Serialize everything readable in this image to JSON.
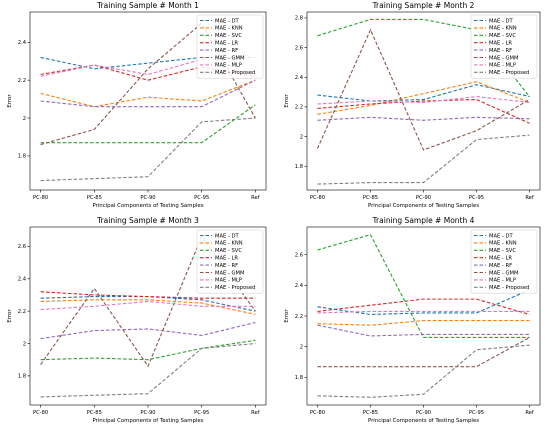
{
  "chart_data": [
    {
      "type": "line",
      "title": "Training Sample # Month 1",
      "xlabel": "Principal Components of Testing Samples",
      "ylabel": "Error",
      "categories": [
        "PC-80",
        "PC-85",
        "PC-90",
        "PC-95",
        "Ref"
      ],
      "ylim": [
        1.62,
        2.56
      ],
      "yticks": [
        1.8,
        2.0,
        2.2,
        2.4
      ],
      "grid": false,
      "legend": "top-right",
      "series": [
        {
          "name": "MAE - DT",
          "color": "#1f77b4",
          "values": [
            2.32,
            2.26,
            2.29,
            2.32,
            2.32
          ]
        },
        {
          "name": "MAE - KNN",
          "color": "#ff7f0e",
          "values": [
            2.13,
            2.06,
            2.11,
            2.09,
            2.2
          ]
        },
        {
          "name": "MAE - SVC",
          "color": "#2ca02c",
          "values": [
            1.87,
            1.87,
            1.87,
            1.87,
            2.07
          ]
        },
        {
          "name": "MAE - LR",
          "color": "#d62728",
          "values": [
            2.23,
            2.28,
            2.2,
            2.27,
            2.22
          ]
        },
        {
          "name": "MAE - RF",
          "color": "#9467bd",
          "values": [
            2.09,
            2.06,
            2.06,
            2.06,
            2.2
          ]
        },
        {
          "name": "MAE - GMM",
          "color": "#8c564b",
          "values": [
            1.86,
            1.94,
            2.26,
            2.5,
            2.0
          ]
        },
        {
          "name": "MAE - MLP",
          "color": "#e377c2",
          "values": [
            2.22,
            2.28,
            2.23,
            2.31,
            2.22
          ]
        },
        {
          "name": "MAE - Proposed",
          "color": "#7f7f7f",
          "values": [
            1.67,
            1.68,
            1.69,
            1.98,
            2.0
          ]
        }
      ]
    },
    {
      "type": "line",
      "title": "Training Sample # Month 2",
      "xlabel": "Principal Components of Testing Samples",
      "ylabel": "Error",
      "categories": [
        "PC-80",
        "PC-85",
        "PC-90",
        "PC-95",
        "Ref"
      ],
      "ylim": [
        1.64,
        2.84
      ],
      "yticks": [
        1.8,
        2.0,
        2.2,
        2.4,
        2.6,
        2.8
      ],
      "grid": false,
      "legend": "top-right",
      "series": [
        {
          "name": "MAE - DT",
          "color": "#1f77b4",
          "values": [
            2.28,
            2.24,
            2.25,
            2.35,
            2.27
          ]
        },
        {
          "name": "MAE - KNN",
          "color": "#ff7f0e",
          "values": [
            2.15,
            2.21,
            2.29,
            2.37,
            2.23
          ]
        },
        {
          "name": "MAE - SVC",
          "color": "#2ca02c",
          "values": [
            2.68,
            2.79,
            2.79,
            2.72,
            2.27
          ]
        },
        {
          "name": "MAE - LR",
          "color": "#d62728",
          "values": [
            2.19,
            2.22,
            2.24,
            2.25,
            2.09
          ]
        },
        {
          "name": "MAE - RF",
          "color": "#9467bd",
          "values": [
            2.11,
            2.13,
            2.11,
            2.13,
            2.12
          ]
        },
        {
          "name": "MAE - GMM",
          "color": "#8c564b",
          "values": [
            1.92,
            2.72,
            1.91,
            2.04,
            2.25
          ]
        },
        {
          "name": "MAE - MLP",
          "color": "#e377c2",
          "values": [
            2.22,
            2.24,
            2.23,
            2.27,
            2.23
          ]
        },
        {
          "name": "MAE - Proposed",
          "color": "#7f7f7f",
          "values": [
            1.68,
            1.69,
            1.69,
            1.98,
            2.01
          ]
        }
      ]
    },
    {
      "type": "line",
      "title": "Training Sample # Month 3",
      "xlabel": "Principal Components of Testing Samples",
      "ylabel": "Error",
      "categories": [
        "PC-80",
        "PC-85",
        "PC-90",
        "PC-95",
        "Ref"
      ],
      "ylim": [
        1.62,
        2.72
      ],
      "yticks": [
        1.8,
        2.0,
        2.2,
        2.4,
        2.6
      ],
      "grid": false,
      "legend": "top-right",
      "series": [
        {
          "name": "MAE - DT",
          "color": "#1f77b4",
          "values": [
            2.28,
            2.29,
            2.29,
            2.27,
            2.2
          ]
        },
        {
          "name": "MAE - KNN",
          "color": "#ff7f0e",
          "values": [
            2.26,
            2.27,
            2.27,
            2.25,
            2.18
          ]
        },
        {
          "name": "MAE - SVC",
          "color": "#2ca02c",
          "values": [
            1.9,
            1.91,
            1.9,
            1.97,
            2.02
          ]
        },
        {
          "name": "MAE - LR",
          "color": "#d62728",
          "values": [
            2.32,
            2.3,
            2.29,
            2.28,
            2.28
          ]
        },
        {
          "name": "MAE - RF",
          "color": "#9467bd",
          "values": [
            2.03,
            2.08,
            2.09,
            2.05,
            2.13
          ]
        },
        {
          "name": "MAE - GMM",
          "color": "#8c564b",
          "values": [
            1.87,
            2.34,
            1.86,
            2.66,
            2.2
          ]
        },
        {
          "name": "MAE - MLP",
          "color": "#e377c2",
          "values": [
            2.21,
            2.23,
            2.26,
            2.23,
            2.23
          ]
        },
        {
          "name": "MAE - Proposed",
          "color": "#7f7f7f",
          "values": [
            1.67,
            1.68,
            1.69,
            1.97,
            2.0
          ]
        }
      ]
    },
    {
      "type": "line",
      "title": "Training Sample # Month 4",
      "xlabel": "Principal Components of Testing Samples",
      "ylabel": "Error",
      "categories": [
        "PC-80",
        "PC-85",
        "PC-90",
        "PC-95",
        "Ref"
      ],
      "ylim": [
        1.62,
        2.78
      ],
      "yticks": [
        1.8,
        2.0,
        2.2,
        2.4,
        2.6
      ],
      "grid": false,
      "legend": "top-right",
      "series": [
        {
          "name": "MAE - DT",
          "color": "#1f77b4",
          "values": [
            2.26,
            2.21,
            2.22,
            2.22,
            2.37
          ]
        },
        {
          "name": "MAE - KNN",
          "color": "#ff7f0e",
          "values": [
            2.15,
            2.14,
            2.17,
            2.17,
            2.17
          ]
        },
        {
          "name": "MAE - SVC",
          "color": "#2ca02c",
          "values": [
            2.63,
            2.73,
            2.06,
            2.06,
            2.06
          ]
        },
        {
          "name": "MAE - LR",
          "color": "#d62728",
          "values": [
            2.23,
            2.27,
            2.31,
            2.31,
            2.21
          ]
        },
        {
          "name": "MAE - RF",
          "color": "#9467bd",
          "values": [
            2.14,
            2.07,
            2.08,
            2.08,
            2.08
          ]
        },
        {
          "name": "MAE - GMM",
          "color": "#8c564b",
          "values": [
            1.87,
            1.87,
            1.87,
            1.87,
            2.06
          ]
        },
        {
          "name": "MAE - MLP",
          "color": "#e377c2",
          "values": [
            2.22,
            2.23,
            2.23,
            2.23,
            2.23
          ]
        },
        {
          "name": "MAE - Proposed",
          "color": "#7f7f7f",
          "values": [
            1.68,
            1.67,
            1.69,
            1.98,
            2.01
          ]
        }
      ]
    }
  ]
}
